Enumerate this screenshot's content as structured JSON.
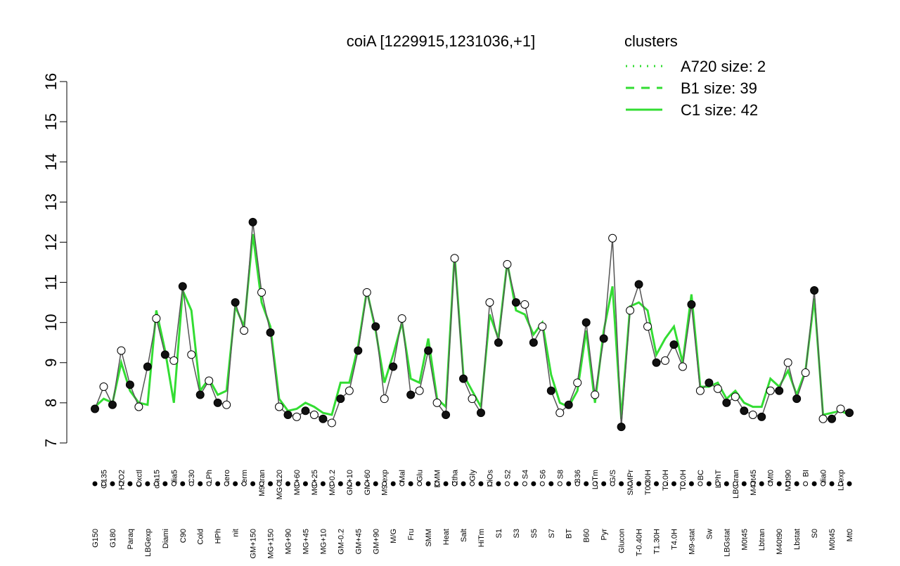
{
  "chart_data": {
    "type": "line",
    "title": "coiA [1229915,1231036,+1]",
    "categories": [
      "G150",
      "G135",
      "G180",
      "H2O2",
      "Paraq",
      "Oxctl",
      "LBGexp",
      "dia15",
      "Diami",
      "dia5",
      "C90",
      "C30",
      "Cold",
      "LPh",
      "HPh",
      "aero",
      "nit",
      "ferm",
      "GM+150",
      "M9-tran",
      "MG+150",
      "MG+120",
      "MG+90",
      "MG+60",
      "MG+45",
      "MG+25",
      "MG+10",
      "MG-0.2",
      "GM-0.2",
      "GM+10",
      "GM+45",
      "GM+60",
      "GM+90",
      "M9-exp",
      "M/G",
      "Mal",
      "Fru",
      "Glu",
      "SMM",
      "BMM",
      "Heat",
      "Etha",
      "Salt",
      "Gly",
      "HiTm",
      "HiOs",
      "S1",
      "S2",
      "S3",
      "S4",
      "S5",
      "S6",
      "S7",
      "S8",
      "BT",
      "B36",
      "B60",
      "LoTm",
      "Pyr",
      "G/S",
      "Glucon",
      "SMMPr",
      "T-0.40H",
      "T0.30H",
      "T1.30H",
      "T2.0H",
      "T4.0H",
      "T5.0H",
      "M9-stat",
      "BC",
      "Sw",
      "LPhT",
      "LBGstat",
      "LBGtran",
      "M0t45",
      "M40t45",
      "Lbtran",
      "Mt0",
      "M40t90",
      "M0t90",
      "Lbstat",
      "BI",
      "S0",
      "dia0",
      "M0t45",
      "Lbexp",
      "Mt0"
    ],
    "values": [
      7.85,
      8.4,
      7.95,
      9.3,
      8.45,
      7.9,
      8.9,
      10.1,
      9.2,
      9.05,
      10.9,
      9.2,
      8.2,
      8.55,
      8.0,
      7.95,
      10.5,
      9.8,
      12.5,
      10.75,
      9.75,
      7.9,
      7.7,
      7.65,
      7.8,
      7.7,
      7.6,
      7.5,
      8.1,
      8.3,
      9.3,
      10.75,
      9.9,
      8.1,
      8.9,
      10.1,
      8.2,
      8.3,
      9.3,
      8.0,
      7.7,
      11.6,
      8.6,
      8.1,
      7.75,
      10.5,
      9.5,
      11.45,
      10.5,
      10.45,
      9.5,
      9.9,
      8.3,
      7.75,
      7.95,
      8.5,
      10.0,
      8.2,
      9.6,
      12.1,
      7.4,
      10.3,
      10.95,
      9.9,
      9.0,
      9.05,
      9.45,
      8.9,
      10.45,
      8.3,
      8.5,
      8.35,
      8.0,
      8.15,
      7.8,
      7.7,
      7.65,
      8.3,
      8.3,
      9.0,
      8.1,
      8.75,
      10.8,
      7.6,
      7.6,
      7.85,
      7.75
    ],
    "color": "#000000",
    "series": [
      {
        "name": "C1 size: 42",
        "color": "#33dd33",
        "values": [
          7.9,
          8.1,
          8.0,
          9.0,
          8.3,
          8.0,
          7.95,
          10.3,
          9.3,
          8.0,
          10.8,
          10.3,
          8.3,
          8.6,
          8.2,
          8.3,
          10.4,
          9.9,
          12.2,
          10.5,
          9.9,
          8.1,
          7.8,
          7.85,
          8.0,
          7.9,
          7.75,
          7.7,
          8.5,
          8.5,
          9.4,
          10.8,
          9.8,
          8.5,
          9.2,
          10.0,
          8.6,
          8.5,
          9.6,
          8.1,
          7.9,
          11.7,
          8.7,
          8.3,
          7.9,
          10.2,
          9.6,
          11.5,
          10.3,
          10.2,
          9.7,
          10.0,
          8.7,
          8.0,
          7.9,
          8.3,
          9.8,
          8.0,
          9.8,
          10.9,
          7.6,
          10.4,
          10.5,
          10.3,
          9.2,
          9.6,
          9.9,
          9.0,
          10.7,
          8.4,
          8.4,
          8.5,
          8.1,
          8.3,
          8.0,
          7.9,
          7.9,
          8.6,
          8.4,
          8.8,
          8.2,
          8.8,
          10.6,
          7.7,
          7.75,
          7.8,
          7.7
        ]
      }
    ],
    "legend": {
      "title": "clusters",
      "color": "#33dd33",
      "entries": [
        {
          "label": "A720 size: 2",
          "dash": "2 8"
        },
        {
          "label": "B1 size: 39",
          "dash": "12 10"
        },
        {
          "label": "C1 size: 42",
          "dash": "none"
        }
      ]
    },
    "ylim": [
      7,
      16
    ],
    "yticks": [
      7,
      8,
      9,
      10,
      11,
      12,
      13,
      14,
      15,
      16
    ]
  }
}
